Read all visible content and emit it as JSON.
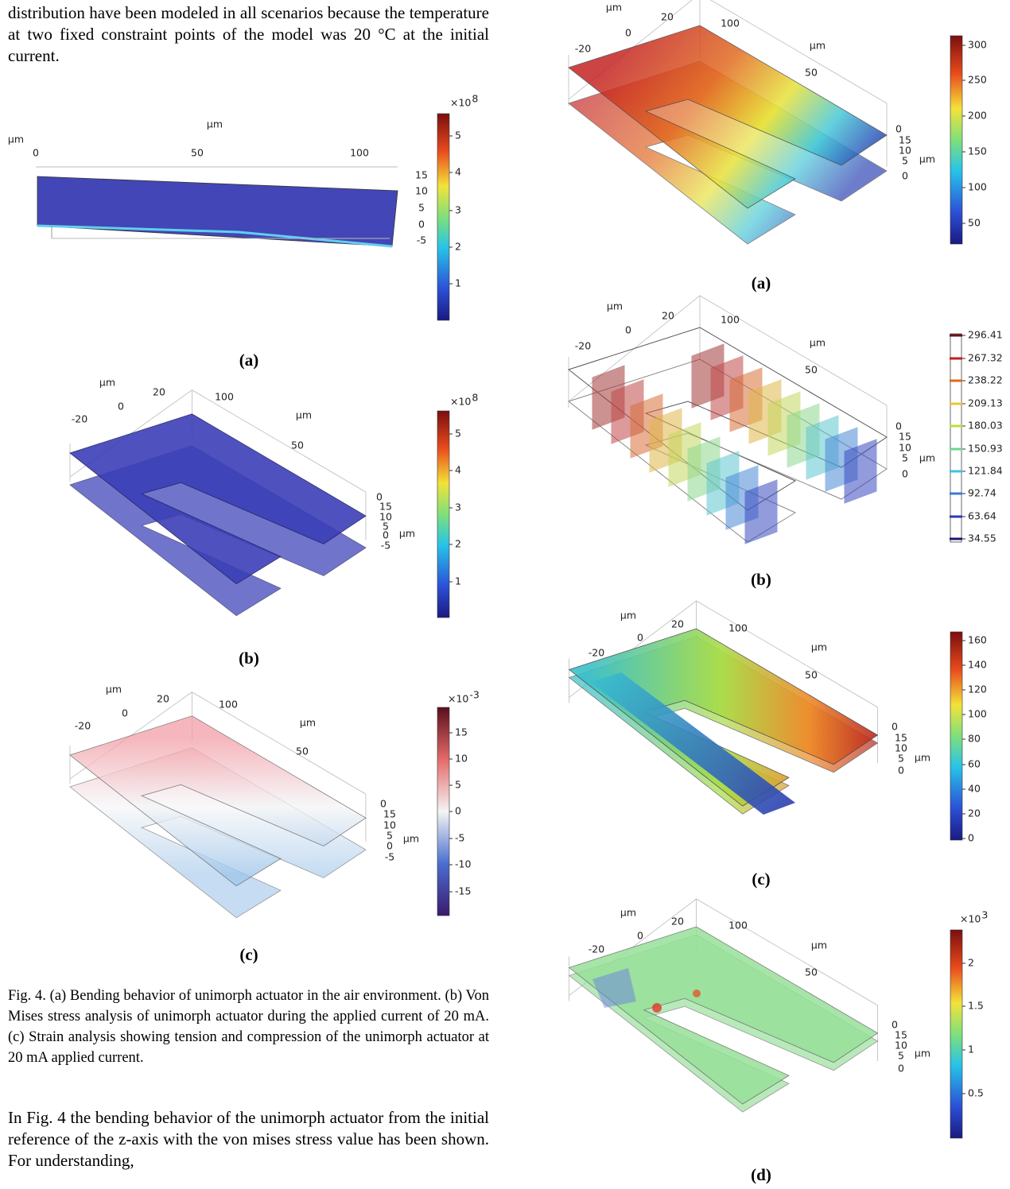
{
  "left_column": {
    "intro_text": "distribution have been modeled in all scenarios because the temperature at two fixed constraint points of the model was 20 °C at the initial current.",
    "figure_4": {
      "panels": [
        {
          "label": "(a)",
          "axis_labels": [
            "µm",
            "µm",
            "0",
            "50",
            "100",
            "15",
            "10",
            "5",
            "0",
            "-5"
          ],
          "colorbar": {
            "multiplier": "×10",
            "exponent": "8",
            "ticks": [
              "5",
              "4",
              "3",
              "2",
              "1"
            ]
          }
        },
        {
          "label": "(b)",
          "axis_labels": [
            "µm",
            "-20",
            "0",
            "20",
            "100",
            "µm",
            "50",
            "0",
            "15",
            "10",
            "5",
            "0",
            "-5",
            "µm"
          ],
          "colorbar": {
            "multiplier": "×10",
            "exponent": "8",
            "ticks": [
              "5",
              "4",
              "3",
              "2",
              "1"
            ]
          }
        },
        {
          "label": "(c)",
          "axis_labels": [
            "µm",
            "-20",
            "0",
            "20",
            "100",
            "µm",
            "50",
            "0",
            "15",
            "10",
            "5",
            "0",
            "-5",
            "µm"
          ],
          "colorbar": {
            "multiplier": "×10",
            "exponent": "-3",
            "ticks": [
              "15",
              "10",
              "5",
              "0",
              "-5",
              "-10",
              "-15"
            ]
          }
        }
      ],
      "caption": "Fig. 4.  (a) Bending behavior of unimorph actuator in the air environment. (b) Von Mises stress analysis of unimorph actuator during the applied current of 20 mA. (c) Strain analysis showing tension and compression of the unimorph actuator at 20 mA applied current."
    },
    "body_text": "In Fig. 4 the bending behavior of the unimorph actuator from the initial reference of the z-axis with the von mises stress value has been shown. For understanding,"
  },
  "right_column": {
    "panels": [
      {
        "label": "(a)",
        "axis_labels": [
          "µm",
          "20",
          "100",
          "0",
          "-20",
          "µm",
          "50",
          "0",
          "15",
          "10",
          "5",
          "0",
          "µm"
        ],
        "colorbar": {
          "ticks": [
            "300",
            "250",
            "200",
            "150",
            "100",
            "50"
          ]
        }
      },
      {
        "label": "(b)",
        "axis_labels": [
          "µm",
          "20",
          "100",
          "0",
          "-20",
          "µm",
          "50",
          "0",
          "15",
          "10",
          "5",
          "0",
          "µm"
        ],
        "colorbar": {
          "ticks": [
            "296.41",
            "267.32",
            "238.22",
            "209.13",
            "180.03",
            "150.93",
            "121.84",
            "92.74",
            "63.64",
            "34.55"
          ]
        }
      },
      {
        "label": "(c)",
        "axis_labels": [
          "µm",
          "20",
          "100",
          "0",
          "-20",
          "µm",
          "50",
          "0",
          "15",
          "10",
          "5",
          "0",
          "µm"
        ],
        "colorbar": {
          "ticks": [
            "160",
            "140",
            "120",
            "100",
            "80",
            "60",
            "40",
            "20",
            "0"
          ]
        }
      },
      {
        "label": "(d)",
        "axis_labels": [
          "µm",
          "20",
          "100",
          "0",
          "-20",
          "µm",
          "50",
          "0",
          "15",
          "10",
          "5",
          "0",
          "µm"
        ],
        "colorbar": {
          "multiplier": "×10",
          "exponent": "3",
          "ticks": [
            "2",
            "1.5",
            "1",
            "0.5"
          ]
        }
      }
    ]
  }
}
